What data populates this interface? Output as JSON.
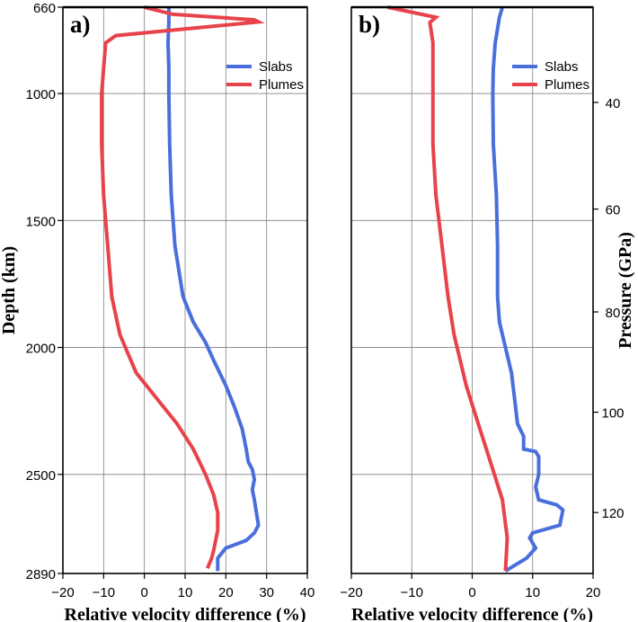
{
  "chart_data": [
    {
      "type": "line",
      "panel_label": "a)",
      "xlabel": "Relative velocity difference (%)",
      "ylabel": "Depth (km)",
      "xlim": [
        -20,
        40
      ],
      "xticks": [
        -20,
        -10,
        0,
        10,
        20,
        30,
        40
      ],
      "ylim": [
        660,
        2890
      ],
      "yticks": [
        660,
        1000,
        1500,
        2000,
        2500,
        2890
      ],
      "grid": true,
      "legend": "top-right",
      "series": [
        {
          "name": "Slabs",
          "color": "#4a6fdc",
          "points": [
            [
              6,
              660
            ],
            [
              6,
              720
            ],
            [
              5.8,
              800
            ],
            [
              6,
              900
            ],
            [
              6,
              1000
            ],
            [
              6.2,
              1200
            ],
            [
              6.6,
              1400
            ],
            [
              7.5,
              1600
            ],
            [
              9.5,
              1800
            ],
            [
              12,
              1900
            ],
            [
              15,
              1980
            ],
            [
              17,
              2050
            ],
            [
              20,
              2150
            ],
            [
              22,
              2230
            ],
            [
              24,
              2320
            ],
            [
              25,
              2400
            ],
            [
              25.5,
              2450
            ],
            [
              26.5,
              2480
            ],
            [
              27,
              2520
            ],
            [
              26.5,
              2560
            ],
            [
              27,
              2600
            ],
            [
              27.5,
              2650
            ],
            [
              28,
              2700
            ],
            [
              27,
              2730
            ],
            [
              25,
              2760
            ],
            [
              20,
              2790
            ],
            [
              18,
              2830
            ],
            [
              18,
              2880
            ]
          ]
        },
        {
          "name": "Plumes",
          "color": "#e8424a",
          "points": [
            [
              0,
              660
            ],
            [
              7,
              688
            ],
            [
              27,
              710
            ],
            [
              28,
              718
            ],
            [
              -7,
              772
            ],
            [
              -9.5,
              800
            ],
            [
              -10,
              900
            ],
            [
              -10.5,
              1000
            ],
            [
              -10.5,
              1200
            ],
            [
              -10,
              1400
            ],
            [
              -9,
              1600
            ],
            [
              -8,
              1800
            ],
            [
              -6,
              1950
            ],
            [
              -2,
              2100
            ],
            [
              3,
              2200
            ],
            [
              8,
              2300
            ],
            [
              12,
              2400
            ],
            [
              15,
              2500
            ],
            [
              17,
              2580
            ],
            [
              18,
              2650
            ],
            [
              18,
              2720
            ],
            [
              17,
              2800
            ],
            [
              16.5,
              2830
            ],
            [
              15.5,
              2870
            ]
          ]
        }
      ]
    },
    {
      "type": "line",
      "panel_label": "b)",
      "xlabel": "Relative velocity difference (%)",
      "ylabel": "Pressure (GPa)",
      "xlim": [
        -20,
        20
      ],
      "xticks": [
        -20,
        -10,
        0,
        10,
        20
      ],
      "pressure_ticks": [
        {
          "label": "40",
          "depth": 1035
        },
        {
          "label": "60",
          "depth": 1455
        },
        {
          "label": "80",
          "depth": 1860
        },
        {
          "label": "100",
          "depth": 2255
        },
        {
          "label": "120",
          "depth": 2650
        }
      ],
      "grid": true,
      "legend": "top-right",
      "series": [
        {
          "name": "Slabs",
          "color": "#4a6fdc",
          "points": [
            [
              5,
              660
            ],
            [
              4.5,
              700
            ],
            [
              3.8,
              800
            ],
            [
              3.5,
              900
            ],
            [
              3.4,
              1000
            ],
            [
              3.5,
              1200
            ],
            [
              4,
              1400
            ],
            [
              4.2,
              1600
            ],
            [
              4.2,
              1800
            ],
            [
              4.5,
              1900
            ],
            [
              5.5,
              2000
            ],
            [
              6.5,
              2100
            ],
            [
              7,
              2200
            ],
            [
              7.5,
              2300
            ],
            [
              8.5,
              2350
            ],
            [
              8.5,
              2400
            ],
            [
              10.5,
              2410
            ],
            [
              11,
              2430
            ],
            [
              11,
              2500
            ],
            [
              10.5,
              2550
            ],
            [
              11,
              2600
            ],
            [
              14,
              2620
            ],
            [
              15,
              2640
            ],
            [
              14.5,
              2700
            ],
            [
              10,
              2730
            ],
            [
              9.5,
              2750
            ],
            [
              10.5,
              2790
            ],
            [
              9,
              2830
            ],
            [
              5.5,
              2880
            ]
          ]
        },
        {
          "name": "Plumes",
          "color": "#e8424a",
          "points": [
            [
              -14,
              660
            ],
            [
              -6,
              700
            ],
            [
              -7,
              720
            ],
            [
              -6.5,
              800
            ],
            [
              -6.5,
              1000
            ],
            [
              -6.5,
              1200
            ],
            [
              -6,
              1400
            ],
            [
              -5,
              1600
            ],
            [
              -4,
              1800
            ],
            [
              -3,
              1950
            ],
            [
              -1,
              2150
            ],
            [
              1,
              2300
            ],
            [
              3,
              2450
            ],
            [
              5,
              2600
            ],
            [
              5.8,
              2750
            ],
            [
              5.5,
              2880
            ]
          ]
        }
      ]
    }
  ]
}
